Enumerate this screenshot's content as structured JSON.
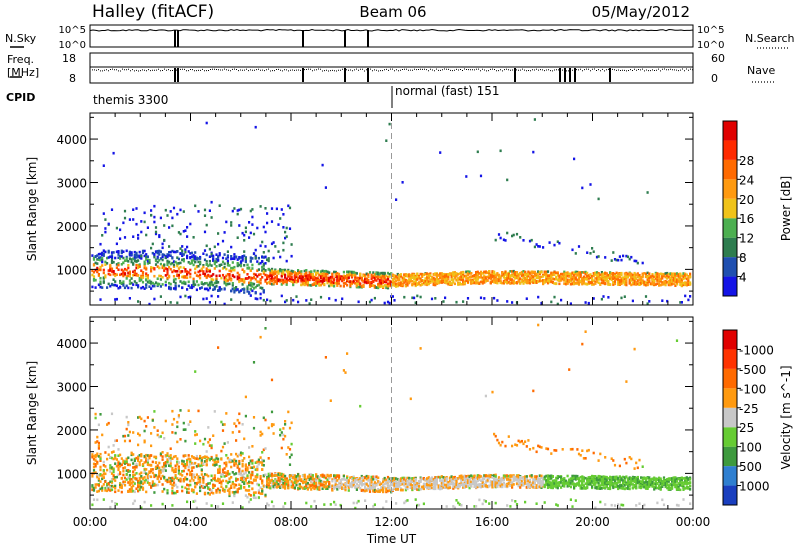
{
  "header": {
    "station": "Halley (fitACF)",
    "beam": "Beam 06",
    "date": "05/May/2012"
  },
  "strips": {
    "nsky_label": "N.Sky",
    "nsearch_label": "N.Search",
    "noise_ticks": [
      "10^5",
      "10^0"
    ],
    "freq_label_1": "Freq.",
    "freq_label_2": "[MHz]",
    "freq_ticks": [
      "18",
      "8"
    ],
    "nave_label": "Nave",
    "nave_ticks": [
      "60",
      "0"
    ],
    "cpid_label": "CPID",
    "cpid_1": "themis 3300",
    "cpid_2": "normal (fast) 151"
  },
  "chart_data": [
    {
      "type": "heatmap",
      "title": "",
      "xlabel": "Time UT",
      "ylabel": "Slant Range [km]",
      "x_ticks": [
        "00:00",
        "04:00",
        "08:00",
        "12:00",
        "16:00",
        "20:00",
        "00:00"
      ],
      "xlim": [
        0,
        24
      ],
      "ylim": [
        180,
        4600
      ],
      "y_ticks": [
        1000,
        2000,
        3000,
        4000
      ],
      "colorbar": {
        "label": "Power [dB]",
        "ticks": [
          "4",
          "8",
          "12",
          "16",
          "20",
          "24",
          "28"
        ],
        "colors": [
          "#1414e6",
          "#1f4fb0",
          "#2e7d4f",
          "#4caf50",
          "#f0c31a",
          "#ff9a10",
          "#ff6a00",
          "#ff2a00",
          "#e00000"
        ]
      },
      "features": [
        {
          "name": "main echo band",
          "time_start": 0.0,
          "time_end": 23.8,
          "range_center_start": 1000,
          "range_center_mid": 800,
          "range_center_end": 900
        }
      ]
    },
    {
      "type": "heatmap",
      "title": "",
      "xlabel": "Time UT",
      "ylabel": "Slant Range [km]",
      "x_ticks": [
        "00:00",
        "04:00",
        "08:00",
        "12:00",
        "16:00",
        "20:00",
        "00:00"
      ],
      "xlim": [
        0,
        24
      ],
      "ylim": [
        180,
        4600
      ],
      "y_ticks": [
        1000,
        2000,
        3000,
        4000
      ],
      "colorbar": {
        "label": "Velocity [m s^-1]",
        "ticks": [
          "1000",
          "500",
          "100",
          "25",
          "-25",
          "-100",
          "-500",
          "-1000"
        ],
        "colors": [
          "#1a3fbf",
          "#2f7fd0",
          "#3e9a3e",
          "#66cc33",
          "#c8c8c8",
          "#ff9a10",
          "#ff6a00",
          "#ff3300",
          "#e00000"
        ]
      }
    }
  ]
}
